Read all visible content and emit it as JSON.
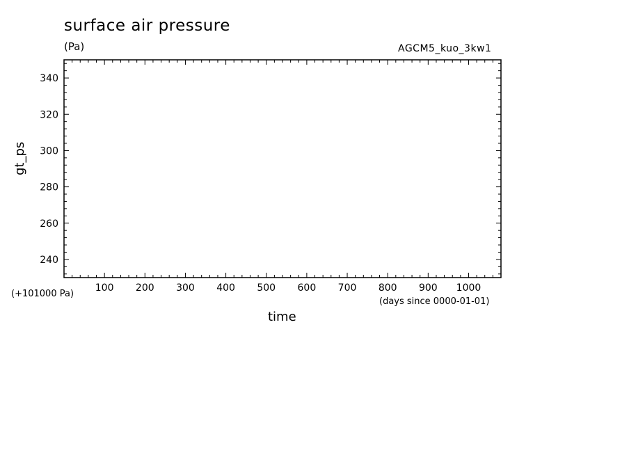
{
  "chart_data": {
    "type": "line",
    "title": "surface air pressure",
    "units": "(Pa)",
    "run_name": "AGCM5_kuo_3kw1",
    "ylabel": "gt_ps",
    "xlabel": "time",
    "y_offset_label": "(+101000 Pa)",
    "x_units_label": "(days since 0000-01-01)",
    "xlim": [
      0,
      1080
    ],
    "ylim": [
      230,
      350
    ],
    "x_ticks": [
      100,
      200,
      300,
      400,
      500,
      600,
      700,
      800,
      900,
      1000
    ],
    "y_ticks": [
      240,
      260,
      280,
      300,
      320,
      340
    ],
    "series": [],
    "grid": false
  }
}
